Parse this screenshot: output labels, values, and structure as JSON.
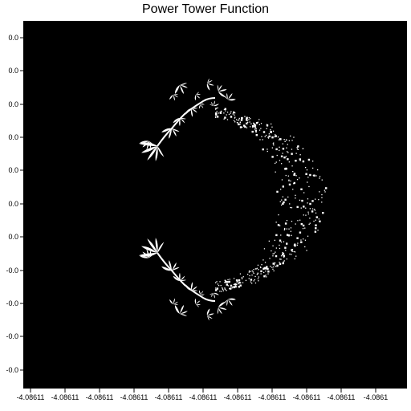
{
  "chart_data": {
    "type": "heatmap",
    "title": "Power Tower Function",
    "xlabel": "",
    "ylabel": "",
    "colors": {
      "background": "#000000",
      "set": "#ffffff"
    },
    "grid": false,
    "legend": "none",
    "x_tick_labels": [
      "-4.08611",
      "-4.08611",
      "-4.08611",
      "-4.08611",
      "-4.08611",
      "-4.08611",
      "-4.08611",
      "-4.08611",
      "-4.08611",
      "-4.08611",
      "-4.0861",
      "-4.0861"
    ],
    "y_tick_labels": [
      "0.0",
      "0.0",
      "0.0",
      "0.0",
      "0.0",
      "0.0",
      "0.0",
      "-0.0",
      "-0.0",
      "-0.0",
      "-0.0",
      "-0.0"
    ]
  }
}
